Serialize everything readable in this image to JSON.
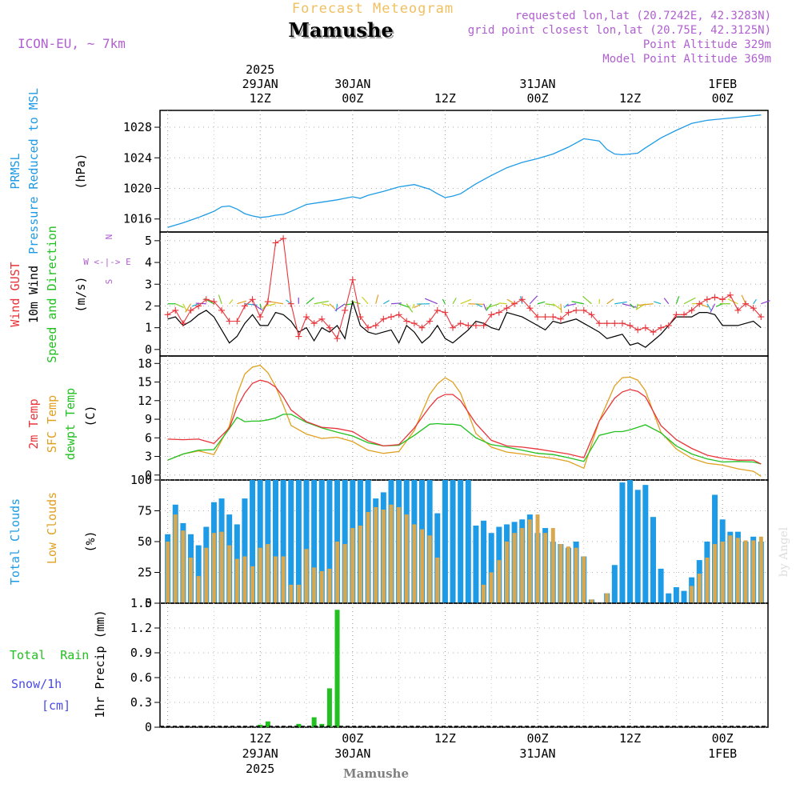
{
  "header": {
    "forecast_title": "Forecast Meteogram",
    "location": "Mamushe",
    "model": "ICON-EU, ~ 7km",
    "requested": "requested lon,lat (20.7242E, 42.3283N)",
    "grid_point": "grid point closest lon,lat (20.75E, 42.3125N)",
    "point_altitude": "Point Altitude 329m",
    "model_altitude": "Model Point Altitude 369m"
  },
  "footer": {
    "location": "Mamushe",
    "watermark": "by Angel"
  },
  "time_axis": {
    "top_labels": [
      {
        "t": 12,
        "lines": [
          "2025",
          "29JAN",
          "12Z"
        ]
      },
      {
        "t": 24,
        "lines": [
          "30JAN",
          "00Z"
        ]
      },
      {
        "t": 36,
        "lines": [
          "12Z"
        ]
      },
      {
        "t": 48,
        "lines": [
          "31JAN",
          "00Z"
        ]
      },
      {
        "t": 60,
        "lines": [
          "12Z"
        ]
      },
      {
        "t": 72,
        "lines": [
          "1FEB",
          "00Z"
        ]
      }
    ],
    "bottom_labels": [
      {
        "t": 12,
        "lines": [
          "12Z",
          "29JAN",
          "2025"
        ]
      },
      {
        "t": 24,
        "lines": [
          "00Z",
          "30JAN"
        ]
      },
      {
        "t": 36,
        "lines": [
          "12Z"
        ]
      },
      {
        "t": 48,
        "lines": [
          "00Z",
          "31JAN"
        ]
      },
      {
        "t": 60,
        "lines": [
          "12Z"
        ]
      },
      {
        "t": 72,
        "lines": [
          "00Z",
          "1FEB"
        ]
      }
    ]
  },
  "colors": {
    "pressure": "#1e9be6",
    "gust": "#e8343a",
    "wind": "#000000",
    "temp2m": "#e8343a",
    "sfc": "#e0a020",
    "dewpt": "#22c020",
    "total_cloud": "#1e9be6",
    "low_cloud": "#d8a850",
    "rain": "#22c020",
    "snow": "#4a4ae8",
    "header_purple": "#b060d0",
    "title_orange": "#f0c060"
  },
  "panels": {
    "pressure": {
      "label_lines": [
        "PRMSL",
        "Pressure Reduced to MSL"
      ],
      "unit": "(hPa)"
    },
    "wind": {
      "gust_label": "Wind GUST",
      "wind_label": "10m Wind",
      "dir_label": "Speed and Direction",
      "unit": "(m/s)",
      "compass": "W <-|-> E",
      "compass_n": "N",
      "compass_s": "S"
    },
    "temp": {
      "t2m_label": "2m Temp",
      "sfc_label": "SFC Temp",
      "dew_label": "dewpt Temp",
      "unit": "(C)"
    },
    "cloud": {
      "total_label": "Total Clouds",
      "low_label": "Low Clouds",
      "unit": "(%)"
    },
    "precip": {
      "rain_label": "Total  Rain",
      "snow_label": "Snow/1h",
      "snow_unit": "[cm]",
      "axis_label": "1hr Precip (mm)"
    }
  },
  "chart_data": [
    {
      "type": "line",
      "title": "",
      "ylabel": "Pressure Reduced to MSL (hPa)",
      "ylim": [
        1014.3,
        1030.2
      ],
      "yticks": [
        "1016",
        "1020",
        "1024",
        "1028"
      ],
      "x_hours": [
        0,
        2,
        4,
        6,
        7,
        8,
        9,
        10,
        11,
        12,
        13,
        14,
        15,
        16,
        18,
        20,
        22,
        23,
        24,
        25,
        26,
        28,
        30,
        32,
        34,
        35,
        36,
        37,
        38,
        40,
        42,
        44,
        46,
        48,
        50,
        52,
        54,
        56,
        57,
        58,
        59,
        60,
        61,
        62,
        64,
        66,
        68,
        70,
        72,
        74,
        75,
        76,
        77
      ],
      "series": [
        {
          "name": "PRMSL",
          "values": [
            1014.9,
            1015.5,
            1016.2,
            1017.0,
            1017.6,
            1017.7,
            1017.3,
            1016.7,
            1016.4,
            1016.2,
            1016.3,
            1016.5,
            1016.6,
            1017.0,
            1017.9,
            1018.2,
            1018.5,
            1018.7,
            1018.9,
            1018.7,
            1019.1,
            1019.6,
            1020.2,
            1020.5,
            1019.9,
            1019.3,
            1018.8,
            1019.0,
            1019.3,
            1020.6,
            1021.7,
            1022.7,
            1023.4,
            1023.9,
            1024.5,
            1025.4,
            1026.5,
            1026.2,
            1025.1,
            1024.5,
            1024.4,
            1024.5,
            1024.6,
            1025.3,
            1026.6,
            1027.6,
            1028.5,
            1028.9,
            1029.1,
            1029.3,
            1029.4,
            1029.5,
            1029.6
          ]
        }
      ]
    },
    {
      "type": "line",
      "title": "",
      "ylabel": "Wind (m/s)",
      "ylim": [
        -0.3,
        5.4
      ],
      "yticks": [
        "0",
        "1",
        "2",
        "3",
        "4",
        "5"
      ],
      "x_hours": [
        0,
        1,
        2,
        3,
        4,
        5,
        6,
        7,
        8,
        9,
        10,
        11,
        12,
        13,
        14,
        15,
        16,
        17,
        18,
        19,
        20,
        21,
        22,
        23,
        24,
        25,
        26,
        27,
        28,
        29,
        30,
        31,
        32,
        33,
        34,
        35,
        36,
        37,
        38,
        39,
        40,
        41,
        42,
        43,
        44,
        45,
        46,
        47,
        48,
        49,
        50,
        51,
        52,
        53,
        54,
        55,
        56,
        57,
        58,
        59,
        60,
        61,
        62,
        63,
        64,
        65,
        66,
        67,
        68,
        69,
        70,
        71,
        72,
        73,
        74,
        75,
        76,
        77
      ],
      "series": [
        {
          "name": "Wind GUST",
          "values": [
            1.6,
            1.8,
            1.2,
            1.8,
            2.0,
            2.3,
            2.2,
            1.8,
            1.3,
            1.3,
            2.0,
            2.3,
            1.5,
            2.2,
            4.9,
            5.1,
            2.1,
            0.6,
            1.5,
            1.2,
            1.4,
            1.0,
            0.5,
            1.8,
            3.2,
            1.5,
            1.0,
            1.1,
            1.4,
            1.5,
            1.6,
            1.3,
            1.2,
            1.0,
            1.3,
            1.8,
            1.7,
            1.0,
            1.2,
            1.1,
            1.1,
            1.1,
            1.6,
            1.7,
            1.9,
            2.1,
            2.3,
            1.9,
            1.5,
            1.5,
            1.5,
            1.4,
            1.7,
            1.8,
            1.8,
            1.6,
            1.2,
            1.2,
            1.2,
            1.2,
            1.1,
            0.9,
            1.0,
            0.8,
            1.0,
            1.1,
            1.6,
            1.6,
            1.8,
            2.1,
            2.3,
            2.4,
            2.3,
            2.5,
            1.8,
            2.1,
            1.9,
            1.5
          ]
        },
        {
          "name": "10m Wind",
          "values": [
            1.4,
            1.5,
            1.1,
            1.3,
            1.6,
            1.8,
            1.5,
            0.9,
            0.3,
            0.6,
            1.2,
            1.6,
            1.1,
            1.1,
            1.7,
            1.6,
            1.3,
            0.8,
            1.0,
            0.4,
            1.0,
            0.8,
            1.1,
            0.5,
            2.2,
            1.1,
            0.8,
            0.7,
            0.8,
            0.9,
            0.3,
            1.1,
            0.8,
            0.3,
            0.6,
            1.1,
            0.5,
            0.3,
            0.6,
            0.9,
            1.3,
            1.2,
            1.0,
            0.9,
            1.7,
            1.6,
            1.5,
            1.3,
            1.1,
            0.9,
            1.3,
            1.2,
            1.3,
            1.4,
            1.2,
            1.0,
            0.8,
            0.5,
            0.6,
            0.7,
            0.2,
            0.3,
            0.1,
            0.4,
            0.7,
            1.1,
            1.5,
            1.5,
            1.5,
            1.7,
            1.7,
            1.6,
            1.1,
            1.1,
            1.1,
            1.2,
            1.3,
            1.0
          ]
        }
      ]
    },
    {
      "type": "line",
      "title": "",
      "ylabel": "Temperature (C)",
      "ylim": [
        -0.8,
        19.2
      ],
      "yticks": [
        "0",
        "3",
        "6",
        "9",
        "12",
        "15",
        "18"
      ],
      "x_hours": [
        0,
        2,
        4,
        6,
        8,
        9,
        10,
        11,
        12,
        13,
        14,
        15,
        16,
        18,
        20,
        22,
        24,
        26,
        28,
        30,
        32,
        34,
        35,
        36,
        37,
        38,
        40,
        42,
        44,
        46,
        48,
        50,
        52,
        54,
        56,
        58,
        59,
        60,
        61,
        62,
        64,
        66,
        68,
        70,
        72,
        74,
        76,
        77
      ],
      "series": [
        {
          "name": "2m Temp",
          "values": [
            5.8,
            5.7,
            5.8,
            5.1,
            7.6,
            10.9,
            13.2,
            14.8,
            15.3,
            15.0,
            14.2,
            12.6,
            10.5,
            8.6,
            7.7,
            7.5,
            7.0,
            5.5,
            4.7,
            4.9,
            7.6,
            11.0,
            12.4,
            13.0,
            13.0,
            12.0,
            8.3,
            5.6,
            4.7,
            4.5,
            4.2,
            3.8,
            3.4,
            2.8,
            8.7,
            12.4,
            13.4,
            13.8,
            13.5,
            12.6,
            8.0,
            5.7,
            4.3,
            3.2,
            2.7,
            2.4,
            2.4,
            1.8
          ]
        },
        {
          "name": "SFC Temp",
          "values": [
            2.4,
            3.4,
            3.9,
            3.3,
            7.9,
            13.0,
            16.3,
            17.4,
            17.7,
            16.5,
            14.3,
            11.3,
            8.0,
            6.6,
            5.9,
            6.1,
            5.4,
            4.0,
            3.5,
            3.8,
            7.2,
            13.0,
            14.7,
            15.7,
            15.0,
            13.2,
            6.7,
            4.5,
            3.7,
            3.4,
            3.0,
            2.7,
            2.2,
            1.1,
            8.7,
            14.4,
            15.7,
            15.8,
            15.3,
            13.6,
            6.9,
            4.2,
            2.7,
            1.9,
            1.6,
            1.0,
            0.6,
            -0.2
          ]
        },
        {
          "name": "dewpt Temp",
          "values": [
            2.4,
            3.4,
            4.0,
            4.1,
            7.5,
            9.3,
            8.6,
            8.7,
            8.7,
            8.9,
            9.2,
            9.8,
            9.8,
            8.5,
            7.6,
            6.9,
            6.3,
            5.2,
            4.7,
            4.8,
            6.4,
            8.2,
            8.3,
            8.2,
            8.2,
            8.0,
            6.0,
            4.9,
            4.5,
            4.0,
            3.5,
            3.3,
            2.8,
            2.2,
            6.4,
            7.0,
            7.0,
            7.3,
            7.7,
            8.1,
            6.8,
            4.7,
            3.4,
            2.6,
            2.1,
            2.2,
            2.1,
            1.8
          ]
        }
      ]
    },
    {
      "type": "bar",
      "title": "",
      "ylabel": "Clouds (%)",
      "ylim": [
        0,
        100
      ],
      "yticks": [
        "0",
        "25",
        "50",
        "75",
        "100"
      ],
      "x_hours": [
        0,
        1,
        2,
        3,
        4,
        5,
        6,
        7,
        8,
        9,
        10,
        11,
        12,
        13,
        14,
        15,
        16,
        17,
        18,
        19,
        20,
        21,
        22,
        23,
        24,
        25,
        26,
        27,
        28,
        29,
        30,
        31,
        32,
        33,
        34,
        35,
        36,
        37,
        38,
        39,
        40,
        41,
        42,
        43,
        44,
        45,
        46,
        47,
        48,
        49,
        50,
        51,
        52,
        53,
        54,
        55,
        56,
        57,
        58,
        59,
        60,
        61,
        62,
        63,
        64,
        65,
        66,
        67,
        68,
        69,
        70,
        71,
        72,
        73,
        74,
        75,
        76,
        77
      ],
      "series": [
        {
          "name": "Total Clouds",
          "values": [
            56,
            80,
            65,
            56,
            47,
            62,
            82,
            85,
            72,
            64,
            85,
            100,
            100,
            100,
            100,
            100,
            100,
            100,
            100,
            100,
            100,
            100,
            100,
            100,
            100,
            100,
            100,
            85,
            90,
            100,
            100,
            100,
            100,
            100,
            100,
            73,
            100,
            100,
            100,
            100,
            63,
            67,
            57,
            62,
            64,
            66,
            68,
            72,
            57,
            61,
            50,
            48,
            45,
            50,
            38,
            3,
            0,
            8,
            31,
            98,
            100,
            92,
            96,
            70,
            28,
            8,
            13,
            10,
            21,
            35,
            50,
            88,
            68,
            58,
            58,
            50,
            54,
            50
          ]
        },
        {
          "name": "Low Clouds",
          "values": [
            50,
            72,
            59,
            37,
            22,
            45,
            57,
            58,
            47,
            36,
            38,
            30,
            45,
            48,
            38,
            38,
            15,
            15,
            44,
            29,
            26,
            28,
            50,
            48,
            61,
            63,
            74,
            78,
            76,
            80,
            78,
            72,
            64,
            60,
            55,
            37,
            0,
            0,
            0,
            0,
            0,
            15,
            25,
            35,
            50,
            57,
            61,
            68,
            72,
            57,
            61,
            48,
            46,
            45,
            38,
            3,
            0,
            8,
            0,
            0,
            0,
            0,
            0,
            0,
            0,
            0,
            0,
            0,
            14,
            24,
            37,
            48,
            50,
            55,
            53,
            51,
            51,
            54
          ]
        }
      ]
    },
    {
      "type": "bar",
      "title": "",
      "ylabel": "1hr Precip (mm)",
      "ylim": [
        0,
        1.5
      ],
      "yticks": [
        "0",
        "0.3",
        "0.6",
        "0.9",
        "1.2",
        "1.5"
      ],
      "x_hours": [
        12,
        13,
        17,
        19,
        20,
        21,
        22
      ],
      "series": [
        {
          "name": "Total Rain",
          "values": [
            0.03,
            0.07,
            0.04,
            0.12,
            0.04,
            0.47,
            1.42
          ]
        }
      ]
    }
  ]
}
